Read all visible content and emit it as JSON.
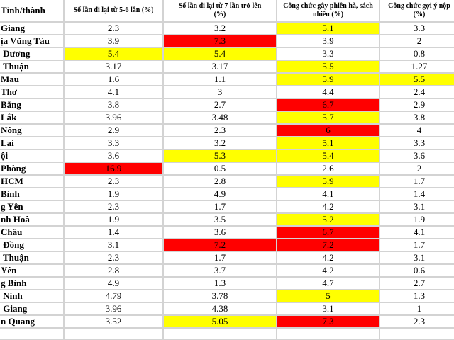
{
  "colors": {
    "background": "#ffffff",
    "text": "#000000",
    "grid_line": "#d3d3d3",
    "highlight_yellow": "#FFFF00",
    "highlight_red": "#FF0000"
  },
  "chart_data": {
    "type": "table",
    "title": "",
    "columns": [
      "Tỉnh/thành",
      "Số lần đi lại từ 5-6 lần (%)",
      "Số lần đi lại từ 7 lần trở lên\n(%)",
      "Công chức gây phiền hà, sách\nnhiễu (%)",
      "Công chức gợi ý nộp\n(%)"
    ],
    "highlight_colors": {
      "yellow": "#FFFF00",
      "red": "#FF0000"
    },
    "rows": [
      {
        "province": "Giang",
        "values": [
          "2.3",
          "3.2",
          "5.1",
          "3.3"
        ],
        "highlights": [
          "none",
          "none",
          "yellow",
          "none"
        ]
      },
      {
        "province": "ịa Vũng Tàu",
        "values": [
          "3.9",
          "7.3",
          "3.9",
          "2"
        ],
        "highlights": [
          "none",
          "red",
          "none",
          "none"
        ]
      },
      {
        "province": " Dương",
        "values": [
          "5.4",
          "5.4",
          "3.3",
          "0.8"
        ],
        "highlights": [
          "yellow",
          "yellow",
          "none",
          "none"
        ]
      },
      {
        "province": " Thuận",
        "values": [
          "3.17",
          "3.17",
          "5.5",
          "1.27"
        ],
        "highlights": [
          "none",
          "none",
          "yellow",
          "none"
        ]
      },
      {
        "province": "Mau",
        "values": [
          "1.6",
          "1.1",
          "5.9",
          "5.5"
        ],
        "highlights": [
          "none",
          "none",
          "yellow",
          "yellow"
        ]
      },
      {
        "province": "Thơ",
        "values": [
          "4.1",
          "3",
          "4.4",
          "2.4"
        ],
        "highlights": [
          "none",
          "none",
          "none",
          "none"
        ]
      },
      {
        "province": "Bằng",
        "values": [
          "3.8",
          "2.7",
          "6.7",
          "2.9"
        ],
        "highlights": [
          "none",
          "none",
          "red",
          "none"
        ]
      },
      {
        "province": "Lắk",
        "values": [
          "3.96",
          "3.48",
          "5.7",
          "3.8"
        ],
        "highlights": [
          "none",
          "none",
          "yellow",
          "none"
        ]
      },
      {
        "province": "Nông",
        "values": [
          "2.9",
          "2.3",
          "6",
          "4"
        ],
        "highlights": [
          "none",
          "none",
          "red",
          "none"
        ]
      },
      {
        "province": "Lai",
        "values": [
          "3.3",
          "3.2",
          "5.1",
          "3.3"
        ],
        "highlights": [
          "none",
          "none",
          "yellow",
          "none"
        ]
      },
      {
        "province": "ội",
        "values": [
          "3.6",
          "5.3",
          "5.4",
          "3.6"
        ],
        "highlights": [
          "none",
          "yellow",
          "yellow",
          "none"
        ]
      },
      {
        "province": "Phòng",
        "values": [
          "16.9",
          "0.5",
          "2.6",
          "2"
        ],
        "highlights": [
          "red",
          "none",
          "none",
          "none"
        ]
      },
      {
        "province": "HCM",
        "values": [
          "2.3",
          "2.8",
          "5.9",
          "1.7"
        ],
        "highlights": [
          "none",
          "none",
          "yellow",
          "none"
        ]
      },
      {
        "province": "Bình",
        "values": [
          "1.9",
          "4.9",
          "4.1",
          "1.4"
        ],
        "highlights": [
          "none",
          "none",
          "none",
          "none"
        ]
      },
      {
        "province": "g Yên",
        "values": [
          "2.3",
          "1.7",
          "4.2",
          "3.1"
        ],
        "highlights": [
          "none",
          "none",
          "none",
          "none"
        ]
      },
      {
        "province": "nh Hoà",
        "values": [
          "1.9",
          "3.5",
          "5.2",
          "1.9"
        ],
        "highlights": [
          "none",
          "none",
          "yellow",
          "none"
        ]
      },
      {
        "province": "Châu",
        "values": [
          "1.4",
          "3.6",
          "6.7",
          "4.1"
        ],
        "highlights": [
          "none",
          "none",
          "red",
          "none"
        ]
      },
      {
        "province": " Đồng",
        "values": [
          "3.1",
          "7.2",
          "7.2",
          "1.7"
        ],
        "highlights": [
          "none",
          "red",
          "red",
          "none"
        ]
      },
      {
        "province": " Thuận",
        "values": [
          "2.3",
          "1.7",
          "4.2",
          "3.1"
        ],
        "highlights": [
          "none",
          "none",
          "none",
          "none"
        ]
      },
      {
        "province": "Yên",
        "values": [
          "2.8",
          "3.7",
          "4.2",
          "0.6"
        ],
        "highlights": [
          "none",
          "none",
          "none",
          "none"
        ]
      },
      {
        "province": "g Bình",
        "values": [
          "4.9",
          "1.3",
          "4.7",
          "2.7"
        ],
        "highlights": [
          "none",
          "none",
          "none",
          "none"
        ]
      },
      {
        "province": " Ninh",
        "values": [
          "4.79",
          "3.78",
          "5",
          "1.3"
        ],
        "highlights": [
          "none",
          "none",
          "yellow",
          "none"
        ]
      },
      {
        "province": " Giang",
        "values": [
          "3.96",
          "4.38",
          "3.1",
          "1"
        ],
        "highlights": [
          "none",
          "none",
          "none",
          "none"
        ]
      },
      {
        "province": "n Quang",
        "values": [
          "3.52",
          "5.05",
          "7.3",
          "2.3"
        ],
        "highlights": [
          "none",
          "yellow",
          "red",
          "none"
        ]
      }
    ]
  }
}
